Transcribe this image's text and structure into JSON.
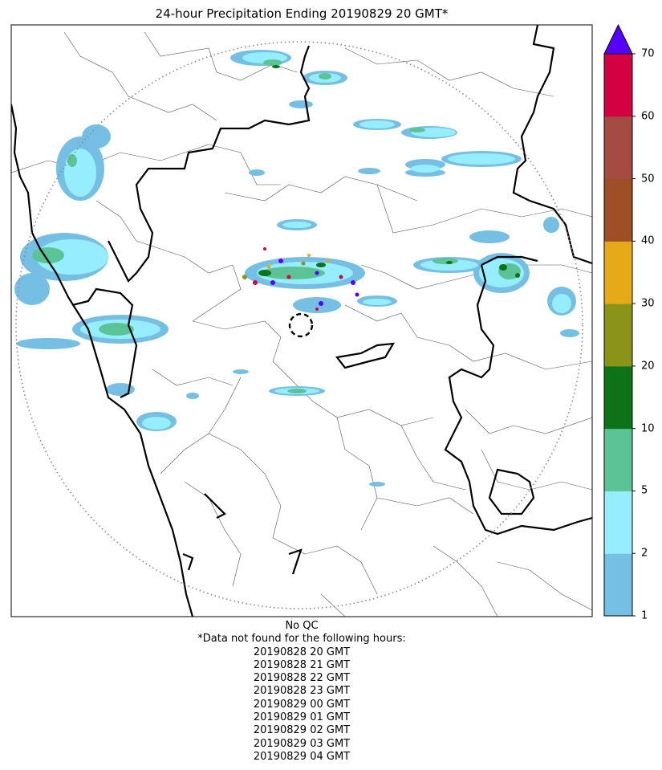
{
  "title": "24-hour Precipitation Ending 20190829 20 GMT*",
  "qc_note": "No QC",
  "missing_header": "*Data not found for the following hours:",
  "missing_hours": [
    "20190828 20 GMT",
    "20190828 21 GMT",
    "20190828 22 GMT",
    "20190828 23 GMT",
    "20190829 00 GMT",
    "20190829 01 GMT",
    "20190829 02 GMT",
    "20190829 03 GMT",
    "20190829 04 GMT"
  ],
  "colorbar": {
    "levels": [
      "1",
      "2",
      "5",
      "10",
      "20",
      "30",
      "40",
      "50",
      "60",
      "70"
    ],
    "colors": [
      "#76bfe4",
      "#96edfd",
      "#5bc396",
      "#0e7318",
      "#8a9419",
      "#e6a918",
      "#9e4f26",
      "#a54b41",
      "#d40044"
    ],
    "extend_color": "#5500ff"
  },
  "colors": {
    "land_border": "#000000",
    "range_ring": "#888888",
    "district_line": "#555555"
  }
}
